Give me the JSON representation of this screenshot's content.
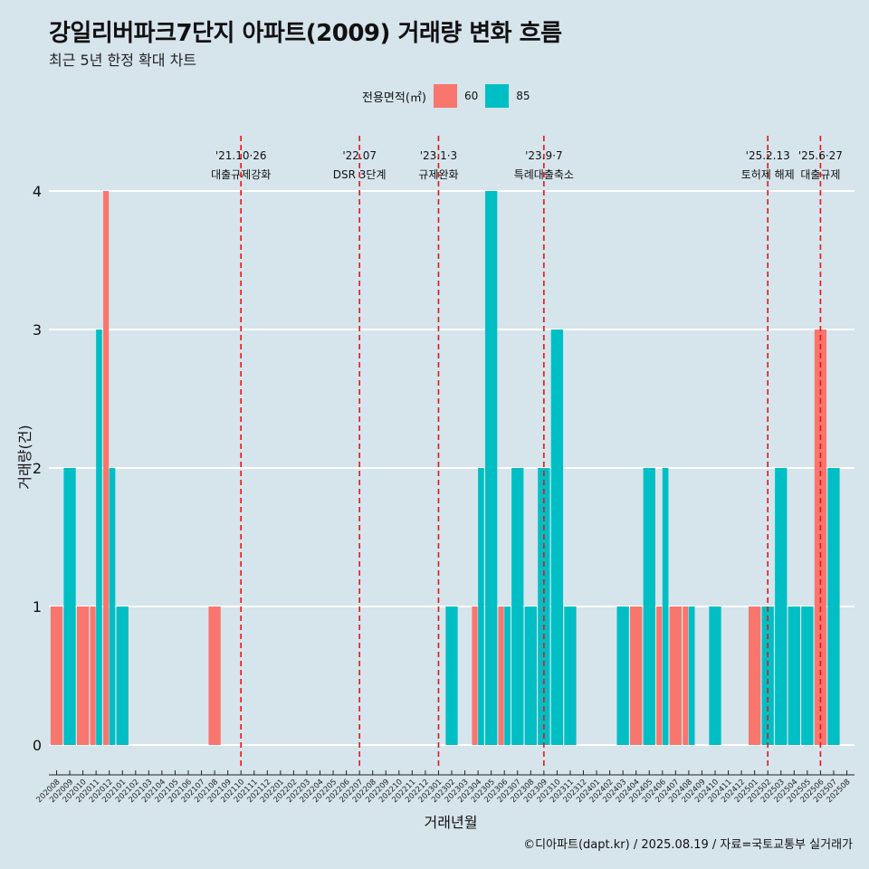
{
  "title": "강일리버파크7단지 아파트(2009) 거래량 변화 흐름",
  "subtitle": "최근 5년 한정 확대 차트",
  "legend": {
    "title": "전용면적(㎡)",
    "items": [
      {
        "label": "60",
        "color": "#f8766d"
      },
      {
        "label": "85",
        "color": "#00bfc4"
      }
    ]
  },
  "caption": "©디아파트(dapt.kr) / 2025.08.19 / 자료=국토교통부 실거래가",
  "chart_data": {
    "type": "bar",
    "xlabel": "거래년월",
    "ylabel": "거래량(건)",
    "ylim": [
      0,
      4
    ],
    "yticks": [
      0,
      1,
      2,
      3,
      4
    ],
    "categories": [
      "202008",
      "202009",
      "202010",
      "202011",
      "202012",
      "202101",
      "202102",
      "202103",
      "202104",
      "202105",
      "202106",
      "202107",
      "202108",
      "202109",
      "202110",
      "202111",
      "202112",
      "202201",
      "202202",
      "202203",
      "202204",
      "202205",
      "202206",
      "202207",
      "202208",
      "202209",
      "202210",
      "202211",
      "202212",
      "202301",
      "202302",
      "202303",
      "202304",
      "202305",
      "202306",
      "202307",
      "202308",
      "202309",
      "202310",
      "202311",
      "202312",
      "202401",
      "202402",
      "202403",
      "202404",
      "202405",
      "202406",
      "202407",
      "202408",
      "202409",
      "202410",
      "202411",
      "202412",
      "202501",
      "202502",
      "202503",
      "202504",
      "202505",
      "202506",
      "202507",
      "202508"
    ],
    "series": [
      {
        "name": "60",
        "color": "#f8766d",
        "values": [
          1,
          0,
          1,
          1,
          4,
          0,
          0,
          0,
          0,
          0,
          0,
          0,
          1,
          0,
          0,
          0,
          0,
          0,
          0,
          0,
          0,
          0,
          0,
          0,
          0,
          0,
          0,
          0,
          0,
          0,
          0,
          0,
          1,
          0,
          1,
          0,
          0,
          0,
          0,
          0,
          0,
          0,
          0,
          0,
          1,
          0,
          1,
          1,
          1,
          0,
          0,
          0,
          0,
          1,
          0,
          0,
          0,
          0,
          3,
          0,
          0
        ]
      },
      {
        "name": "85",
        "color": "#00bfc4",
        "values": [
          0,
          2,
          0,
          3,
          2,
          1,
          0,
          0,
          0,
          0,
          0,
          0,
          0,
          0,
          0,
          0,
          0,
          0,
          0,
          0,
          0,
          0,
          0,
          0,
          0,
          0,
          0,
          0,
          0,
          0,
          1,
          0,
          2,
          4,
          1,
          2,
          1,
          2,
          3,
          1,
          0,
          0,
          0,
          1,
          0,
          2,
          2,
          0,
          1,
          0,
          1,
          0,
          0,
          0,
          1,
          2,
          1,
          1,
          0,
          2,
          0
        ]
      }
    ],
    "annotations": [
      {
        "category": "202110",
        "line1": "'21.10·26",
        "line2": "대출규제강화"
      },
      {
        "category": "202207",
        "line1": "'22.07",
        "line2": "DSR 3단계"
      },
      {
        "category": "202301",
        "line1": "'23.1·3",
        "line2": "규제완화"
      },
      {
        "category": "202309",
        "line1": "'23.9·7",
        "line2": "특례대출축소"
      },
      {
        "category": "202502",
        "line1": "'25.2.13",
        "line2": "토허제 해제"
      },
      {
        "category": "202506",
        "line1": "'25.6·27",
        "line2": "대출규제"
      }
    ],
    "grid": true,
    "legend_position": "top"
  }
}
